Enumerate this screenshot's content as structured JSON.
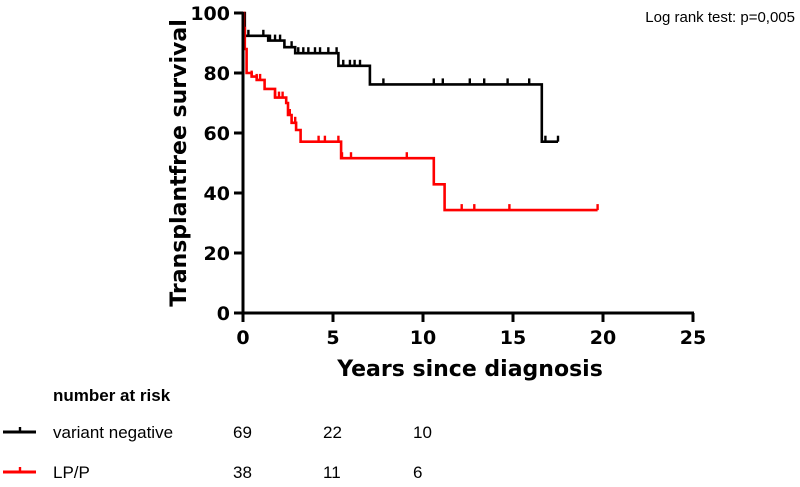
{
  "chart_data": {
    "type": "line",
    "subtype": "kaplan-meier",
    "annotation": "Log rank test:  p=0,005",
    "xlabel": "Years since diagnosis",
    "ylabel": "Transplantfree survival",
    "xlim": [
      0,
      25
    ],
    "ylim": [
      0,
      100
    ],
    "xticks": [
      "0",
      "5",
      "10",
      "15",
      "20",
      "25"
    ],
    "yticks": [
      "0",
      "20",
      "40",
      "60",
      "80",
      "100"
    ],
    "grid": false,
    "series": [
      {
        "name": "variant negative",
        "color": "#000000",
        "steps": [
          [
            0,
            100
          ],
          [
            0.1,
            92.4
          ],
          [
            1.4,
            90.8
          ],
          [
            2.3,
            88.6
          ],
          [
            2.9,
            86.6
          ],
          [
            5.3,
            82.4
          ],
          [
            7.05,
            76.2
          ],
          [
            16.6,
            57.1
          ]
        ],
        "end": 17.5,
        "censored": [
          0.3,
          1.13,
          1.5,
          1.78,
          2.06,
          2.7,
          3.07,
          3.35,
          3.63,
          4.0,
          4.28,
          4.74,
          5.2,
          5.57,
          5.94,
          6.2,
          6.5,
          7.8,
          10.6,
          11.1,
          12.6,
          13.4,
          14.7,
          15.9,
          16.8,
          17.5
        ]
      },
      {
        "name": "LP/P",
        "color": "#ff0000",
        "steps": [
          [
            0,
            100
          ],
          [
            0.05,
            95
          ],
          [
            0.1,
            88
          ],
          [
            0.2,
            80
          ],
          [
            0.48,
            78.8
          ],
          [
            0.76,
            77.7
          ],
          [
            1.2,
            74.7
          ],
          [
            1.78,
            71.8
          ],
          [
            2.4,
            70
          ],
          [
            2.5,
            66
          ],
          [
            2.7,
            63.4
          ],
          [
            2.95,
            61
          ],
          [
            3.2,
            57.1
          ],
          [
            5.45,
            51.6
          ],
          [
            10.6,
            42.9
          ],
          [
            11.2,
            34.3
          ]
        ],
        "end": 19.7,
        "censored": [
          0.48,
          0.76,
          0.95,
          1.78,
          2.0,
          2.2,
          2.6,
          2.9,
          4.2,
          4.55,
          5.3,
          5.5,
          6.0,
          9.1,
          12.15,
          12.85,
          14.8,
          19.7
        ]
      }
    ],
    "number_at_risk": {
      "title": "number at risk",
      "times": [
        0,
        5,
        10
      ],
      "rows": [
        {
          "name": "variant negative",
          "color": "#000000",
          "values": [
            "69",
            "22",
            "10"
          ]
        },
        {
          "name": "LP/P",
          "color": "#ff0000",
          "values": [
            "38",
            "11",
            "6"
          ]
        }
      ]
    }
  }
}
